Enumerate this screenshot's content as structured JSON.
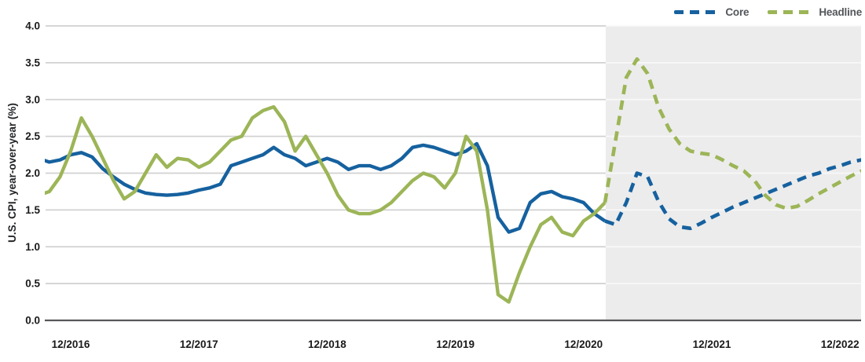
{
  "page": {
    "background": "#FFFFFF"
  },
  "legend": {
    "items": [
      {
        "label": "Core",
        "color": "#16619F"
      },
      {
        "label": "Headline",
        "color": "#9CB557"
      }
    ]
  },
  "chart_data": {
    "type": "line",
    "title": "",
    "xlabel": "",
    "ylabel": "U.S. CPI, year-over-year (%)",
    "ylim": [
      0.0,
      4.0
    ],
    "ytick_step": 0.5,
    "ytick_labels": [
      "0.0",
      "0.5",
      "1.0",
      "1.5",
      "2.0",
      "2.5",
      "3.0",
      "3.5",
      "4.0"
    ],
    "xtick_labels": [
      "12/2016",
      "12/2017",
      "12/2018",
      "12/2019",
      "12/2020",
      "12/2021",
      "12/2022"
    ],
    "grid": "horizontal",
    "frequency": "monthly",
    "x_start_month": "2016-09",
    "x_end_month": "2023-02",
    "history_end_month": "2021-02",
    "forecast_start_index": 53,
    "forecast_region_color": "#ECECEC",
    "gridline_color": "#D1D1D1",
    "gridline_color_forecast": "#F8F8F8",
    "axis_line_color": "#57575B",
    "tick_label_color": "#1A1A1A",
    "legend_position": "top-right",
    "series": [
      {
        "name": "Core",
        "color": "#16619F",
        "style_history": "solid",
        "style_forecast": "dashed",
        "values": [
          2.2,
          2.15,
          2.18,
          2.25,
          2.28,
          2.22,
          2.06,
          1.95,
          1.85,
          1.78,
          1.73,
          1.71,
          1.7,
          1.71,
          1.73,
          1.77,
          1.8,
          1.85,
          2.1,
          2.15,
          2.2,
          2.25,
          2.35,
          2.25,
          2.2,
          2.1,
          2.15,
          2.2,
          2.15,
          2.05,
          2.1,
          2.1,
          2.05,
          2.1,
          2.2,
          2.35,
          2.38,
          2.35,
          2.3,
          2.25,
          2.3,
          2.4,
          2.1,
          1.4,
          1.2,
          1.25,
          1.6,
          1.72,
          1.75,
          1.68,
          1.65,
          1.6,
          1.45,
          1.35,
          1.3,
          1.6,
          2.0,
          1.95,
          1.62,
          1.38,
          1.27,
          1.25,
          1.32,
          1.4,
          1.47,
          1.54,
          1.6,
          1.66,
          1.72,
          1.78,
          1.84,
          1.9,
          1.96,
          2.0,
          2.06,
          2.1,
          2.15,
          2.18
        ]
      },
      {
        "name": "Headline",
        "color": "#9CB557",
        "style_history": "solid",
        "style_forecast": "dashed",
        "values": [
          1.7,
          1.75,
          1.95,
          2.3,
          2.75,
          2.5,
          2.2,
          1.9,
          1.65,
          1.75,
          2.0,
          2.25,
          2.08,
          2.2,
          2.18,
          2.08,
          2.15,
          2.3,
          2.45,
          2.5,
          2.75,
          2.85,
          2.9,
          2.7,
          2.3,
          2.5,
          2.25,
          2.0,
          1.7,
          1.5,
          1.45,
          1.45,
          1.5,
          1.6,
          1.75,
          1.9,
          2.0,
          1.95,
          1.8,
          2.0,
          2.5,
          2.3,
          1.5,
          0.35,
          0.25,
          0.65,
          1.0,
          1.3,
          1.4,
          1.2,
          1.15,
          1.35,
          1.45,
          1.6,
          2.45,
          3.3,
          3.55,
          3.35,
          2.9,
          2.6,
          2.4,
          2.3,
          2.27,
          2.25,
          2.18,
          2.1,
          2.03,
          1.9,
          1.7,
          1.57,
          1.52,
          1.55,
          1.63,
          1.72,
          1.8,
          1.88,
          1.96,
          2.03
        ]
      }
    ]
  }
}
